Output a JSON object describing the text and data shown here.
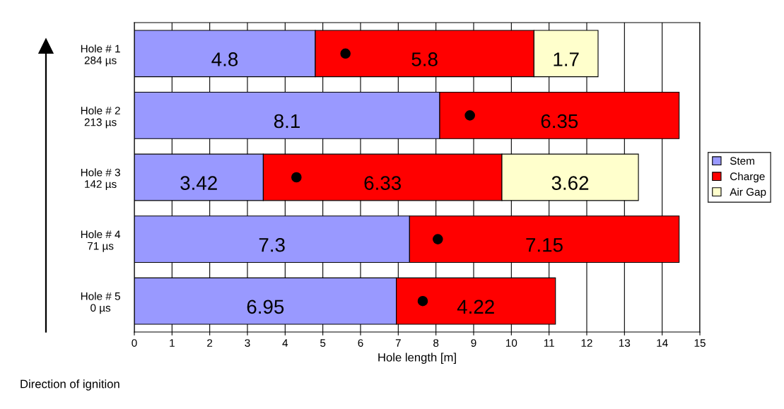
{
  "chart_data": {
    "type": "bar",
    "orientation": "horizontal",
    "stacked": true,
    "xlabel": "Hole length [m]",
    "categories": [
      "Hole # 1\n284 µs",
      "Hole # 2\n213 µs",
      "Hole # 3\n142 µs",
      "Hole # 4\n71 µs",
      "Hole # 5\n0 µs"
    ],
    "series": [
      {
        "name": "Stem",
        "color": "#9999ff",
        "values": [
          4.8,
          8.1,
          3.42,
          7.3,
          6.95
        ],
        "value_labels": [
          "4.8",
          "8.1",
          "3.42",
          "7.3",
          "6.95"
        ]
      },
      {
        "name": "Charge",
        "color": "#ff0000",
        "values": [
          5.8,
          6.35,
          6.33,
          7.15,
          4.22
        ],
        "value_labels": [
          "5.8",
          "6.35",
          "6.33",
          "7.15",
          "4.22"
        ]
      },
      {
        "name": "Air Gap",
        "color": "#ffffcc",
        "values": [
          1.7,
          null,
          3.62,
          null,
          null
        ],
        "value_labels": [
          "1.7",
          null,
          "3.62",
          null,
          null
        ]
      },
      {
        "type": "scatter",
        "color": "#000000",
        "marker": "circle",
        "values": [
          5.6,
          8.9,
          4.3,
          8.05,
          7.65
        ]
      }
    ],
    "xlim": [
      0,
      15
    ],
    "xticks": [
      0,
      1,
      2,
      3,
      4,
      5,
      6,
      7,
      8,
      9,
      10,
      11,
      12,
      13,
      14,
      15
    ],
    "grid": "x",
    "legend": "right",
    "annotations": [
      "Direction of ignition"
    ]
  }
}
